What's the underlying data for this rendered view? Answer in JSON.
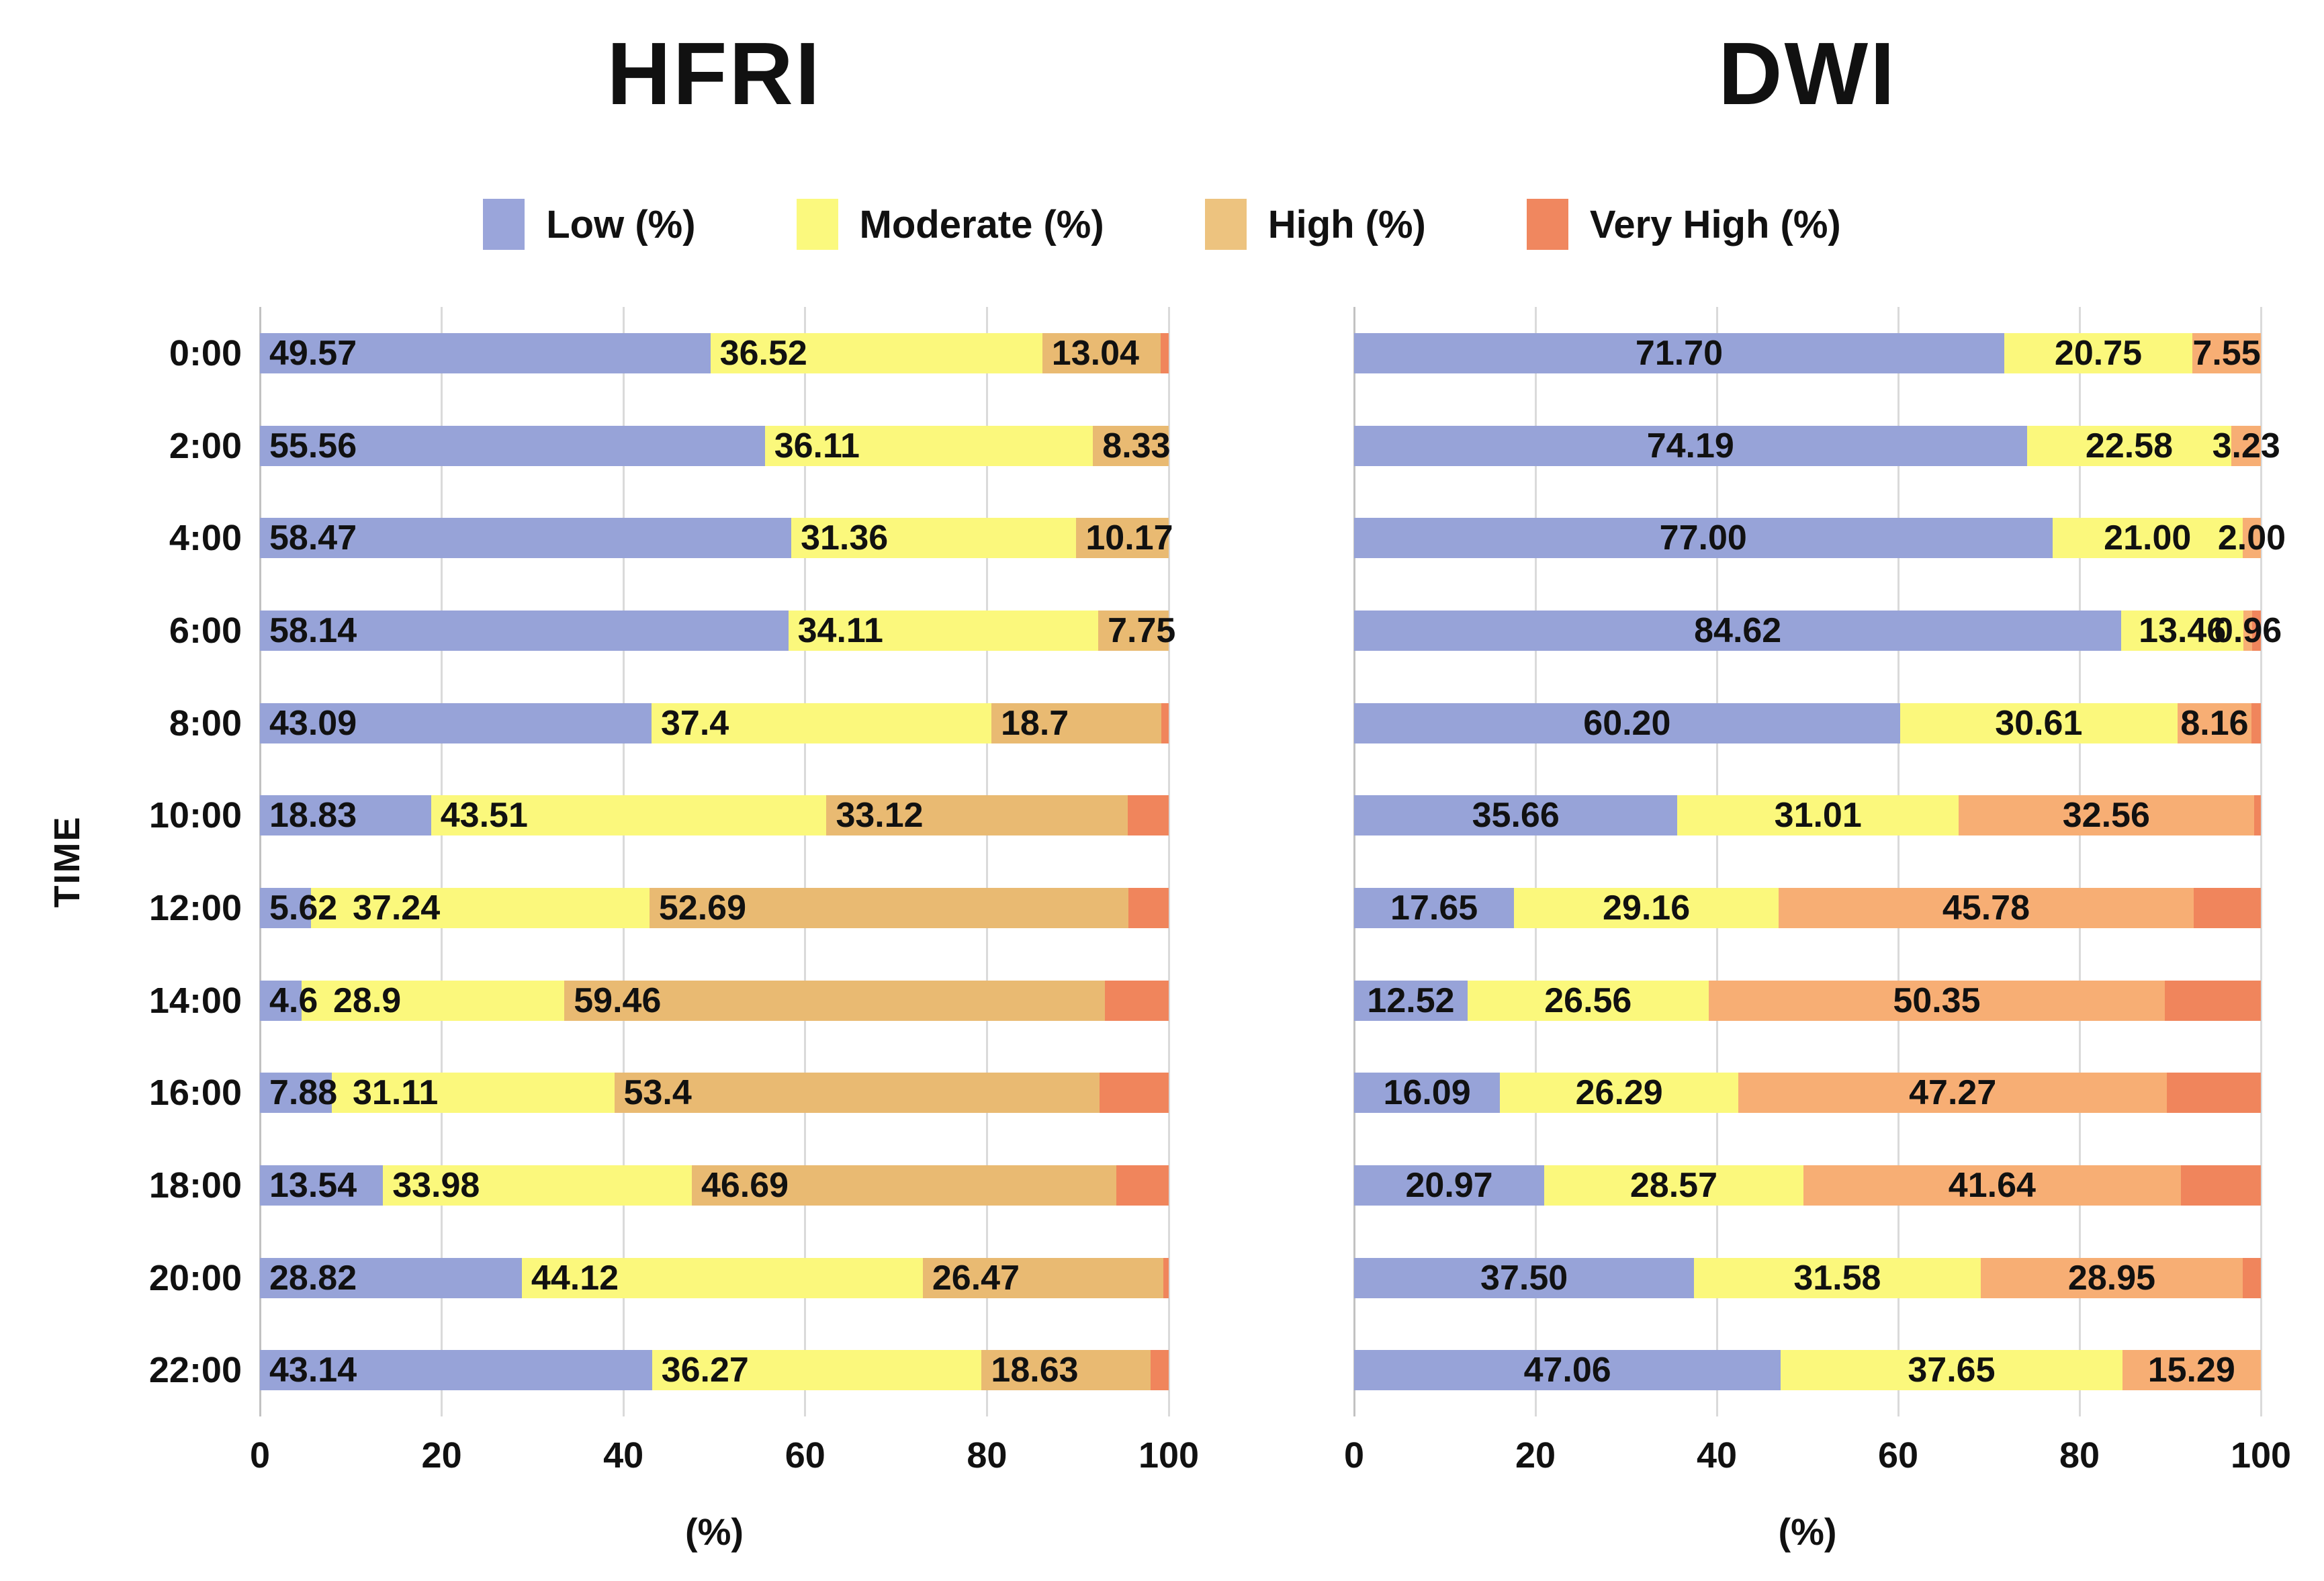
{
  "figure": {
    "title_left": "HFRI",
    "title_right": "DWI",
    "y_axis_label": "TIME",
    "x_axis_label": "(%)",
    "x_ticks": [
      0,
      20,
      40,
      60,
      80,
      100
    ],
    "legend": [
      {
        "label": "Low (%)",
        "color": "#9aa5da"
      },
      {
        "label": "Moderate (%)",
        "color": "#fbf97e"
      },
      {
        "label": "High (%)",
        "color": "#edc37f"
      },
      {
        "label": "Very High (%)",
        "color": "#f0875f"
      }
    ]
  },
  "chart_data": [
    {
      "type": "bar",
      "orientation": "horizontal",
      "stacked": true,
      "title": "HFRI",
      "xlabel": "(%)",
      "ylabel": "TIME",
      "xlim": [
        0,
        100
      ],
      "grid": "vertical",
      "label_align": "left",
      "very_high_labels_shown": false,
      "colors": {
        "low": "#97a3d8",
        "moderate": "#fbf87c",
        "high": "#e9ba72",
        "very_high": "#f0855c"
      },
      "categories": [
        "0:00",
        "2:00",
        "4:00",
        "6:00",
        "8:00",
        "10:00",
        "12:00",
        "14:00",
        "16:00",
        "18:00",
        "20:00",
        "22:00"
      ],
      "rows": [
        {
          "time": "0:00",
          "low": "49.57",
          "moderate": "36.52",
          "high": "13.04",
          "very_high": 0.87
        },
        {
          "time": "2:00",
          "low": "55.56",
          "moderate": "36.11",
          "high": "8.33",
          "very_high": 0
        },
        {
          "time": "4:00",
          "low": "58.47",
          "moderate": "31.36",
          "high": "10.17",
          "very_high": 0
        },
        {
          "time": "6:00",
          "low": "58.14",
          "moderate": "34.11",
          "high": "7.75",
          "very_high": 0
        },
        {
          "time": "8:00",
          "low": "43.09",
          "moderate": "37.4",
          "high": "18.7",
          "very_high": 0.81
        },
        {
          "time": "10:00",
          "low": "18.83",
          "moderate": "43.51",
          "high": "33.12",
          "very_high": 4.54
        },
        {
          "time": "12:00",
          "low": "5.62",
          "moderate": "37.24",
          "high": "52.69",
          "very_high": 4.45
        },
        {
          "time": "14:00",
          "low": "4.6",
          "moderate": "28.9",
          "high": "59.46",
          "very_high": 7.04
        },
        {
          "time": "16:00",
          "low": "7.88",
          "moderate": "31.11",
          "high": "53.4",
          "very_high": 7.61
        },
        {
          "time": "18:00",
          "low": "13.54",
          "moderate": "33.98",
          "high": "46.69",
          "very_high": 5.79
        },
        {
          "time": "20:00",
          "low": "28.82",
          "moderate": "44.12",
          "high": "26.47",
          "very_high": 0.59
        },
        {
          "time": "22:00",
          "low": "43.14",
          "moderate": "36.27",
          "high": "18.63",
          "very_high": 1.96
        }
      ]
    },
    {
      "type": "bar",
      "orientation": "horizontal",
      "stacked": true,
      "title": "DWI",
      "xlabel": "(%)",
      "xlim": [
        0,
        100
      ],
      "grid": "vertical",
      "label_align": "center",
      "very_high_labels_shown": false,
      "colors": {
        "low": "#97a3d8",
        "moderate": "#fbf87c",
        "high": "#f7ae74",
        "very_high": "#f0855c"
      },
      "categories": [
        "0:00",
        "2:00",
        "4:00",
        "6:00",
        "8:00",
        "10:00",
        "12:00",
        "14:00",
        "16:00",
        "18:00",
        "20:00",
        "22:00"
      ],
      "rows": [
        {
          "time": "0:00",
          "low": "71.70",
          "moderate": "20.75",
          "high": "7.55",
          "very_high": 0
        },
        {
          "time": "2:00",
          "low": "74.19",
          "moderate": "22.58",
          "high": "3.23",
          "very_high": 0
        },
        {
          "time": "4:00",
          "low": "77.00",
          "moderate": "21.00",
          "high": "2.00",
          "very_high": 0
        },
        {
          "time": "6:00",
          "low": "84.62",
          "moderate": "13.46",
          "high": "0.96",
          "very_high": 0.96
        },
        {
          "time": "8:00",
          "low": "60.20",
          "moderate": "30.61",
          "high": "8.16",
          "very_high": 1.03
        },
        {
          "time": "10:00",
          "low": "35.66",
          "moderate": "31.01",
          "high": "32.56",
          "very_high": 0.77
        },
        {
          "time": "12:00",
          "low": "17.65",
          "moderate": "29.16",
          "high": "45.78",
          "very_high": 7.41
        },
        {
          "time": "14:00",
          "low": "12.52",
          "moderate": "26.56",
          "high": "50.35",
          "very_high": 10.57
        },
        {
          "time": "16:00",
          "low": "16.09",
          "moderate": "26.29",
          "high": "47.27",
          "very_high": 10.35
        },
        {
          "time": "18:00",
          "low": "20.97",
          "moderate": "28.57",
          "high": "41.64",
          "very_high": 8.82
        },
        {
          "time": "20:00",
          "low": "37.50",
          "moderate": "31.58",
          "high": "28.95",
          "very_high": 1.97
        },
        {
          "time": "22:00",
          "low": "47.06",
          "moderate": "37.65",
          "high": "15.29",
          "very_high": 0
        }
      ]
    }
  ]
}
